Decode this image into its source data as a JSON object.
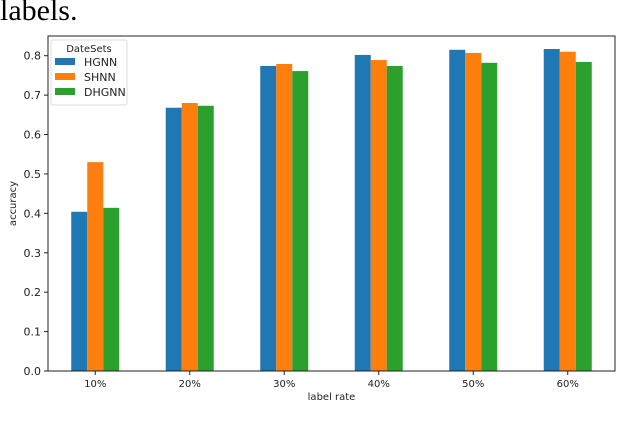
{
  "caption_text": "labels.",
  "chart_data": {
    "type": "bar",
    "title": "",
    "xlabel": "label rate",
    "ylabel": "accuracy",
    "categories": [
      "10%",
      "20%",
      "30%",
      "40%",
      "50%",
      "60%"
    ],
    "ylim": [
      0,
      0.85
    ],
    "yticks": [
      "0.0",
      "0.1",
      "0.2",
      "0.3",
      "0.4",
      "0.5",
      "0.6",
      "0.7",
      "0.8"
    ],
    "grid": false,
    "legend": {
      "title": "DateSets",
      "placement": "top-left"
    },
    "series": [
      {
        "name": "HGNN",
        "color": "#1f77b4",
        "values": [
          0.404,
          0.668,
          0.774,
          0.802,
          0.815,
          0.817
        ]
      },
      {
        "name": "SHNN",
        "color": "#ff7f0e",
        "values": [
          0.53,
          0.68,
          0.779,
          0.789,
          0.807,
          0.81
        ]
      },
      {
        "name": "DHGNN",
        "color": "#2ca02c",
        "values": [
          0.414,
          0.673,
          0.761,
          0.774,
          0.782,
          0.784
        ]
      }
    ]
  }
}
